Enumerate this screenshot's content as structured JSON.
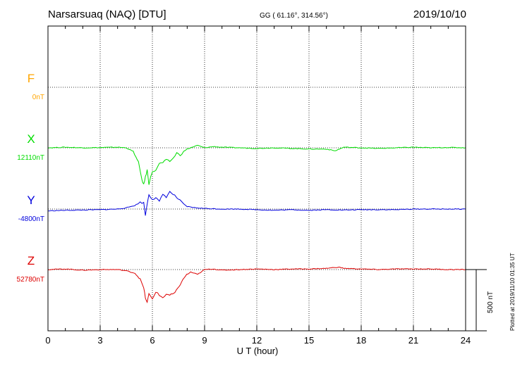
{
  "header": {
    "station": "Narsarsuaq (NAQ)  [DTU]",
    "coords": "GG ( 61.16°, 314.56°)",
    "date": "2019/10/10"
  },
  "footer": {
    "plotted": "Plotted at 2019/11/10 01:35 UT"
  },
  "chart_data": {
    "type": "line",
    "xlabel": "U T (hour)",
    "xlim": [
      0,
      24
    ],
    "xticks": [
      "0",
      "3",
      "6",
      "9",
      "12",
      "15",
      "18",
      "21",
      "24"
    ],
    "grid": true,
    "scale_bar": "500 nT",
    "series": [
      {
        "name": "F",
        "baseline_label": "0nT",
        "color": "#ffa500",
        "baseline_offset_nT": 0,
        "values": []
      },
      {
        "name": "X",
        "baseline_label": "12110nT",
        "color": "#00dd00",
        "baseline_offset_nT": 0,
        "points": [
          [
            0,
            0
          ],
          [
            1,
            5
          ],
          [
            2,
            0
          ],
          [
            3,
            2
          ],
          [
            4,
            5
          ],
          [
            4.5,
            0
          ],
          [
            4.9,
            -30
          ],
          [
            5.2,
            -120
          ],
          [
            5.4,
            -260
          ],
          [
            5.5,
            -300
          ],
          [
            5.6,
            -240
          ],
          [
            5.7,
            -180
          ],
          [
            5.8,
            -300
          ],
          [
            5.9,
            -230
          ],
          [
            6.0,
            -200
          ],
          [
            6.2,
            -180
          ],
          [
            6.4,
            -130
          ],
          [
            6.6,
            -120
          ],
          [
            6.8,
            -100
          ],
          [
            7.0,
            -110
          ],
          [
            7.2,
            -85
          ],
          [
            7.4,
            -40
          ],
          [
            7.6,
            -60
          ],
          [
            7.8,
            -30
          ],
          [
            8.0,
            -10
          ],
          [
            8.2,
            0
          ],
          [
            8.6,
            20
          ],
          [
            9.0,
            0
          ],
          [
            9.5,
            10
          ],
          [
            10,
            5
          ],
          [
            11,
            0
          ],
          [
            12,
            -5
          ],
          [
            13,
            0
          ],
          [
            14,
            -5
          ],
          [
            15,
            -10
          ],
          [
            16,
            -10
          ],
          [
            16.5,
            -25
          ],
          [
            17,
            5
          ],
          [
            18,
            0
          ],
          [
            19,
            -5
          ],
          [
            20,
            0
          ],
          [
            21,
            5
          ],
          [
            22,
            0
          ],
          [
            23,
            3
          ],
          [
            24,
            0
          ]
        ]
      },
      {
        "name": "Y",
        "baseline_label": "-4800nT",
        "color": "#0000dd",
        "baseline_offset_nT": 0,
        "points": [
          [
            0,
            -15
          ],
          [
            1,
            -10
          ],
          [
            2,
            -8
          ],
          [
            3,
            -5
          ],
          [
            4,
            0
          ],
          [
            4.5,
            10
          ],
          [
            5.0,
            30
          ],
          [
            5.3,
            55
          ],
          [
            5.5,
            50
          ],
          [
            5.6,
            -50
          ],
          [
            5.7,
            40
          ],
          [
            5.8,
            120
          ],
          [
            6.0,
            80
          ],
          [
            6.2,
            90
          ],
          [
            6.4,
            60
          ],
          [
            6.6,
            120
          ],
          [
            6.8,
            100
          ],
          [
            7.0,
            140
          ],
          [
            7.2,
            120
          ],
          [
            7.5,
            80
          ],
          [
            7.8,
            40
          ],
          [
            8.0,
            20
          ],
          [
            8.5,
            10
          ],
          [
            9.0,
            5
          ],
          [
            10,
            0
          ],
          [
            11,
            0
          ],
          [
            12,
            -5
          ],
          [
            13,
            -10
          ],
          [
            14,
            -5
          ],
          [
            15,
            -10
          ],
          [
            16,
            -5
          ],
          [
            17,
            -8
          ],
          [
            18,
            -5
          ],
          [
            19,
            -5
          ],
          [
            20,
            -5
          ],
          [
            21,
            0
          ],
          [
            22,
            0
          ],
          [
            23,
            0
          ],
          [
            24,
            0
          ]
        ]
      },
      {
        "name": "Z",
        "baseline_label": "52780nT",
        "color": "#dd0000",
        "baseline_offset_nT": 0,
        "points": [
          [
            0,
            0
          ],
          [
            1,
            5
          ],
          [
            2,
            -5
          ],
          [
            3,
            0
          ],
          [
            4,
            0
          ],
          [
            4.5,
            -10
          ],
          [
            5.0,
            -30
          ],
          [
            5.3,
            -80
          ],
          [
            5.5,
            -150
          ],
          [
            5.6,
            -230
          ],
          [
            5.7,
            -270
          ],
          [
            5.8,
            -200
          ],
          [
            6.0,
            -240
          ],
          [
            6.2,
            -180
          ],
          [
            6.4,
            -210
          ],
          [
            6.6,
            -230
          ],
          [
            6.8,
            -200
          ],
          [
            7.0,
            -210
          ],
          [
            7.3,
            -190
          ],
          [
            7.6,
            -120
          ],
          [
            7.9,
            -50
          ],
          [
            8.2,
            -20
          ],
          [
            8.6,
            -40
          ],
          [
            9.0,
            0
          ],
          [
            9.5,
            5
          ],
          [
            10,
            -5
          ],
          [
            11,
            0
          ],
          [
            12,
            5
          ],
          [
            13,
            0
          ],
          [
            14,
            5
          ],
          [
            15,
            5
          ],
          [
            16,
            10
          ],
          [
            16.7,
            20
          ],
          [
            17,
            10
          ],
          [
            18,
            5
          ],
          [
            19,
            0
          ],
          [
            20,
            5
          ],
          [
            21,
            5
          ],
          [
            22,
            5
          ],
          [
            23,
            0
          ],
          [
            24,
            0
          ]
        ]
      }
    ]
  }
}
